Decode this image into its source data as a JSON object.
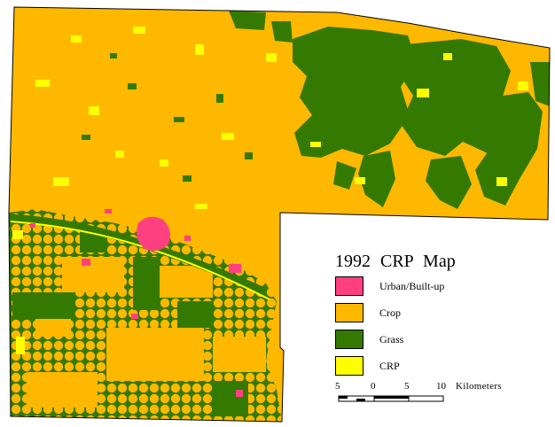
{
  "legend": {
    "title": "1992  CRP  Map",
    "items": [
      {
        "label": "Urban/Built-up",
        "color": "#ff4080"
      },
      {
        "label": "Crop",
        "color": "#ffb800"
      },
      {
        "label": "Grass",
        "color": "#357a00"
      },
      {
        "label": "CRP",
        "color": "#ffff00"
      }
    ]
  },
  "scalebar": {
    "ticks": [
      "5",
      "0",
      "5",
      "10"
    ],
    "unit": "Kilometers"
  },
  "colors": {
    "crop": "#ffb800",
    "grass": "#357a00",
    "crp": "#ffff00",
    "urban": "#ff4080",
    "background": "#ffffff"
  }
}
